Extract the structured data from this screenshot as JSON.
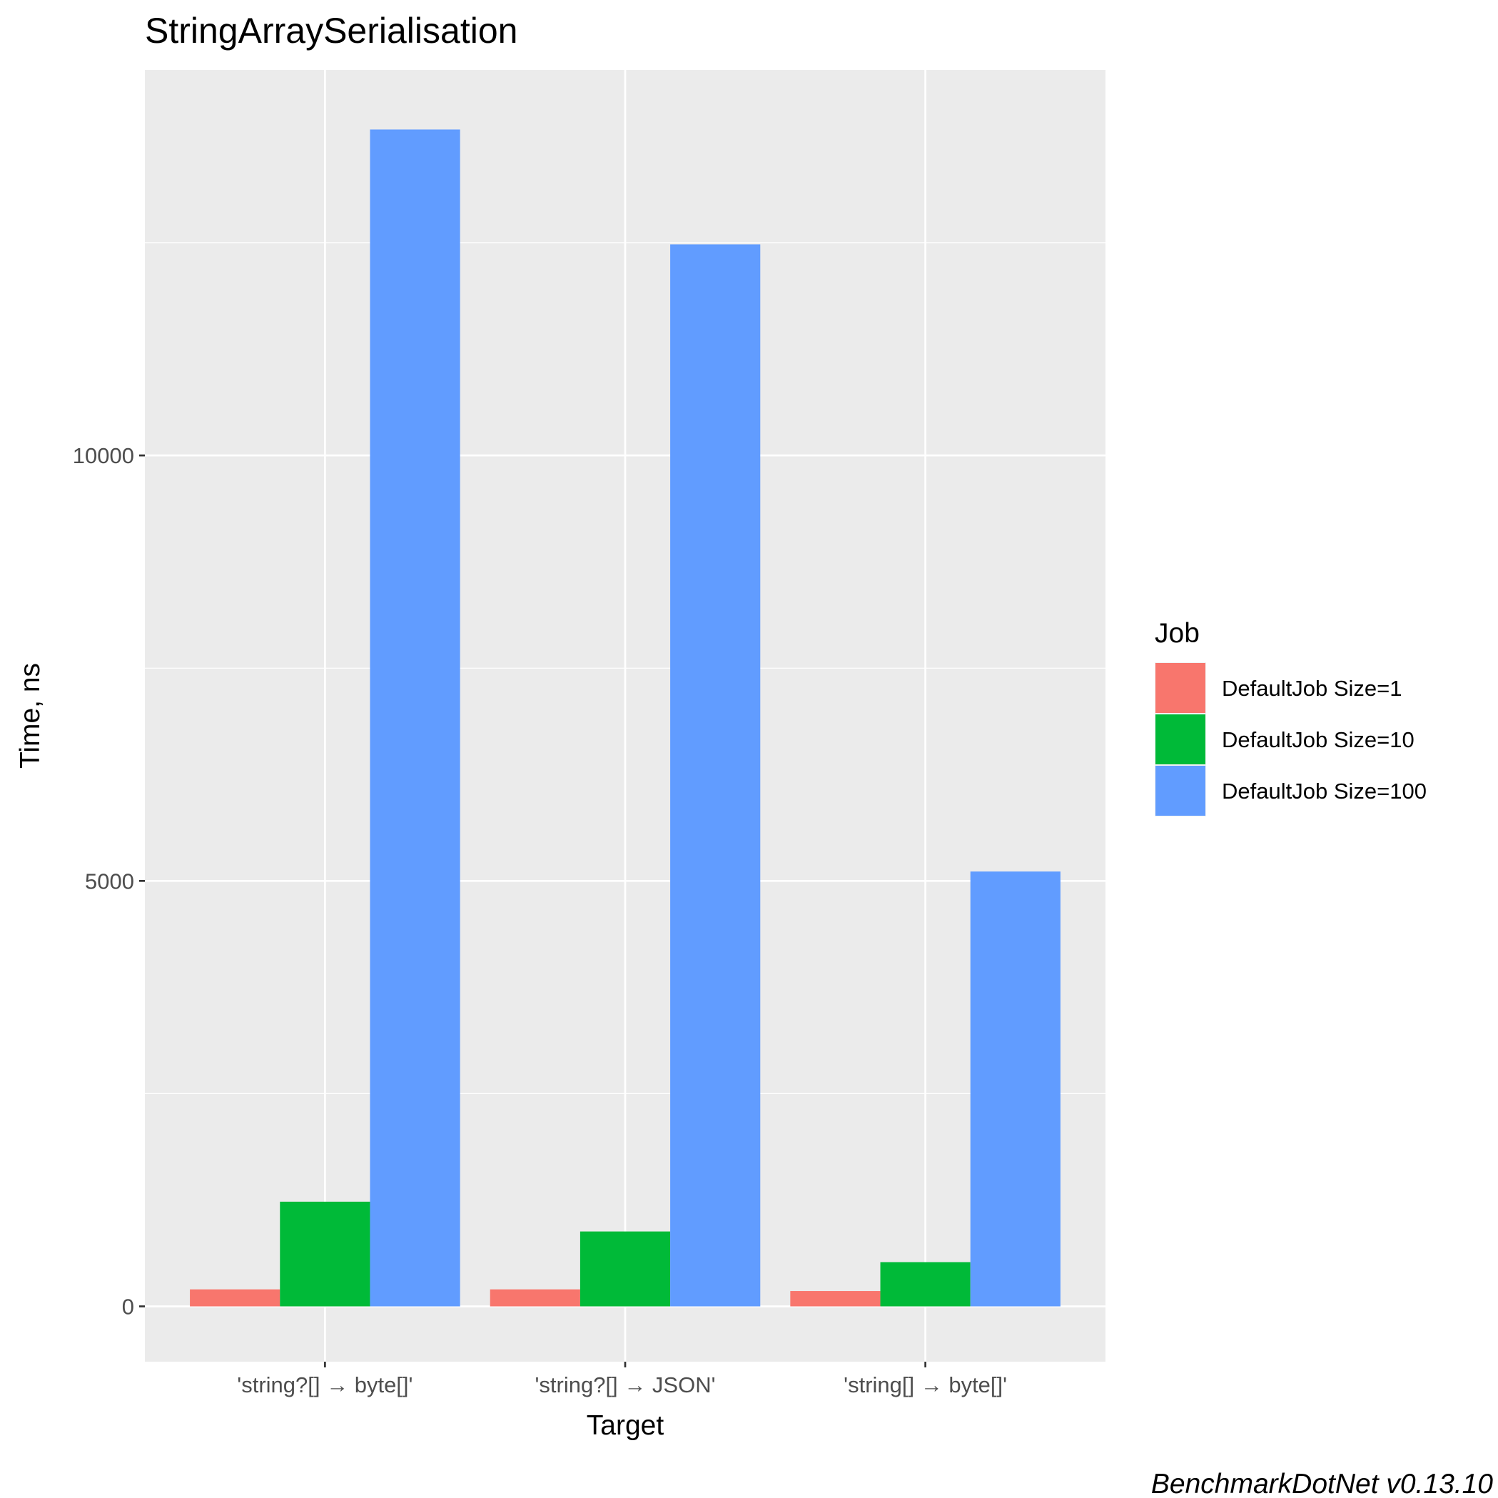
{
  "chart_data": {
    "type": "bar",
    "title": "StringArraySerialisation",
    "xlabel": "Target",
    "ylabel": "Time, ns",
    "categories": [
      "'string?[] → byte[]'",
      "'string?[] → JSON'",
      "'string[] → byte[]'"
    ],
    "series": [
      {
        "name": "DefaultJob Size=1",
        "values": [
          200,
          200,
          180
        ],
        "color": "#F8766D"
      },
      {
        "name": "DefaultJob Size=10",
        "values": [
          1230,
          880,
          520
        ],
        "color": "#00BA38"
      },
      {
        "name": "DefaultJob Size=100",
        "values": [
          13830,
          12480,
          5110
        ],
        "color": "#619CFF"
      }
    ],
    "yticks": [
      0,
      5000,
      10000
    ],
    "ylim": [
      -650,
      14530
    ],
    "grid": true,
    "legend": {
      "title": "Job",
      "position": "right"
    },
    "caption": "BenchmarkDotNet v0.13.10"
  }
}
